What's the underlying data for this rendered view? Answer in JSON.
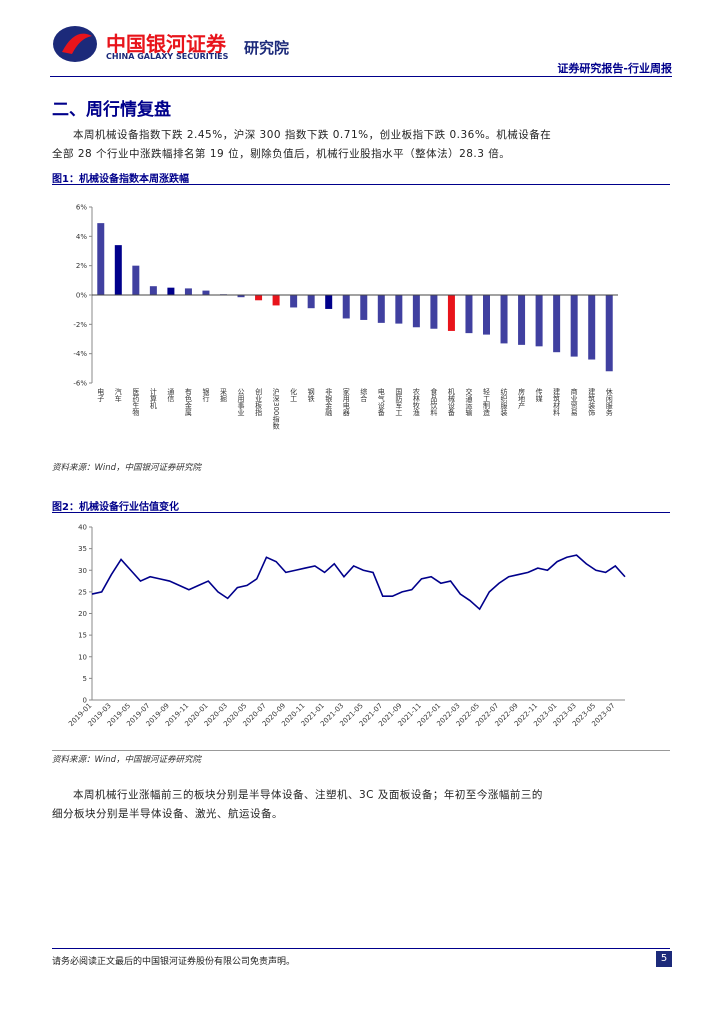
{
  "header": {
    "brand": "中国银河证券",
    "brand_en": "CHINA GALAXY SECURITIES",
    "institute": "研究院",
    "report_type": "证券研究报告-行业周报"
  },
  "section_title": "二、周行情复盘",
  "paragraph1": "本周机械设备指数下跌 2.45%，沪深 300 指数下跌 0.71%，创业板指下跌 0.36%。机械设备在全部 28 个行业中涨跌幅排名第 19 位，剔除负值后，机械行业股指水平（整体法）28.3 倍。",
  "figure1": {
    "title": "图1：机械设备指数本周涨跌幅",
    "source": "资料来源：Wind，中国银河证券研究院"
  },
  "figure2": {
    "title": "图2：机械设备行业估值变化",
    "source": "资料来源：Wind，中国银河证券研究院"
  },
  "paragraph2": "本周机械行业涨幅前三的板块分别是半导体设备、注塑机、3C 及面板设备；年初至今涨幅前三的细分板块分别是半导体设备、激光、航运设备。",
  "footer": {
    "disclaimer": "请务必阅读正文最后的中国银河证券股份有限公司免责声明。",
    "page": 5
  },
  "chart_data": [
    {
      "type": "bar",
      "categories": [
        "电子",
        "汽车",
        "医药生物",
        "计算机",
        "通信",
        "有色金属",
        "银行",
        "采掘",
        "公用事业",
        "创业板指",
        "沪深300指数",
        "化工",
        "钢铁",
        "非银金融",
        "家用电器",
        "综合",
        "电气设备",
        "国防军工",
        "农林牧渔",
        "食品饮料",
        "机械设备",
        "交通运输",
        "轻工制造",
        "纺织服装",
        "房地产",
        "传媒",
        "建筑材料",
        "商业贸易",
        "建筑装饰",
        "休闲服务"
      ],
      "values": [
        4.9,
        3.4,
        2.0,
        0.6,
        0.5,
        0.45,
        0.3,
        0.05,
        -0.15,
        -0.36,
        -0.71,
        -0.85,
        -0.9,
        -0.95,
        -1.6,
        -1.7,
        -1.9,
        -1.95,
        -2.2,
        -2.3,
        -2.45,
        -2.6,
        -2.7,
        -3.3,
        -3.4,
        -3.5,
        -3.9,
        -4.2,
        -4.4,
        -5.2
      ],
      "colors": [
        "#4040a0",
        "#00008b",
        "#4040a0",
        "#4040a0",
        "#00008b",
        "#4040a0",
        "#4040a0",
        "#4040a0",
        "#4040a0",
        "#e8141b",
        "#e8141b",
        "#4040a0",
        "#4040a0",
        "#00008b",
        "#4040a0",
        "#4040a0",
        "#4040a0",
        "#4040a0",
        "#4040a0",
        "#4040a0",
        "#e8141b",
        "#4040a0",
        "#4040a0",
        "#4040a0",
        "#4040a0",
        "#4040a0",
        "#4040a0",
        "#4040a0",
        "#4040a0",
        "#4040a0"
      ],
      "ylim": [
        -6,
        6
      ],
      "yticks": [
        {
          "value": -6,
          "label": "-6%"
        },
        {
          "value": -4,
          "label": "-4%"
        },
        {
          "value": -2,
          "label": "-2%"
        },
        {
          "value": 0,
          "label": "0%"
        },
        {
          "value": 2,
          "label": "2%"
        },
        {
          "value": 4,
          "label": "4%"
        },
        {
          "value": 6,
          "label": "6%"
        }
      ]
    },
    {
      "type": "line",
      "color": "#00008b",
      "categories": [
        "2019-01",
        null,
        "2019-03",
        null,
        "2019-05",
        null,
        "2019-07",
        null,
        "2019-09",
        null,
        "2019-11",
        null,
        "2020-01",
        null,
        "2020-03",
        null,
        "2020-05",
        null,
        "2020-07",
        null,
        "2020-09",
        null,
        "2020-11",
        null,
        "2021-01",
        null,
        "2021-03",
        null,
        "2021-05",
        null,
        "2021-07",
        null,
        "2021-09",
        null,
        "2021-11",
        null,
        "2022-01",
        null,
        "2022-03",
        null,
        "2022-05",
        null,
        "2022-07",
        null,
        "2022-09",
        null,
        "2022-11",
        null,
        "2023-01",
        null,
        "2023-03",
        null,
        "2023-05",
        null,
        "2023-07",
        null
      ],
      "values": [
        24.5,
        25,
        29,
        32.5,
        30,
        27.5,
        28.5,
        28,
        27.5,
        26.5,
        25.5,
        26.5,
        27.5,
        25,
        23.5,
        26,
        26.5,
        28,
        33,
        32,
        29.5,
        30,
        30.5,
        31,
        29.5,
        31.5,
        28.5,
        31,
        30,
        29.5,
        24,
        24,
        25,
        25.5,
        28,
        28.5,
        27,
        27.5,
        24.5,
        23,
        21,
        25,
        27,
        28.5,
        29,
        29.5,
        30.5,
        30,
        32,
        33,
        33.5,
        31.5,
        30,
        29.5,
        31,
        28.5
      ],
      "ylim": [
        0,
        40
      ],
      "yticks": [
        0,
        5,
        10,
        15,
        20,
        25,
        30,
        35,
        40
      ]
    }
  ]
}
